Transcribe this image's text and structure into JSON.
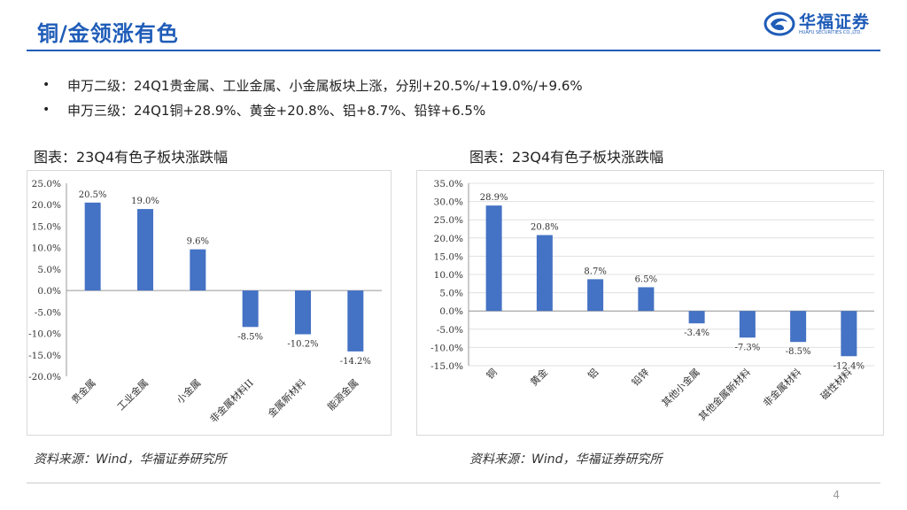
{
  "header": {
    "title": "铜/金领涨有色",
    "logo_name": "华福证券",
    "logo_sub": "HUAFU SECURITIES CO.,LTD."
  },
  "bullets": [
    "申万二级：24Q1贵金属、工业金属、小金属板块上涨，分别+20.5%/+19.0%/+9.6%",
    "申万三级：24Q1铜+28.9%、黄金+20.8%、铝+8.7%、铅锌+6.5%"
  ],
  "bullet_symbol": "•",
  "colors": {
    "accent": "#1F5CB8",
    "bar": "#4472C4"
  },
  "chart_data": [
    {
      "type": "bar",
      "title": "图表：23Q4有色子板块涨跌幅",
      "categories": [
        "贵金属",
        "工业金属",
        "小金属",
        "非金属材料II",
        "金属新材料",
        "能源金属"
      ],
      "values": [
        20.5,
        19.0,
        9.6,
        -8.5,
        -10.2,
        -14.2
      ],
      "value_labels": [
        "20.5%",
        "19.0%",
        "9.6%",
        "-8.5%",
        "-10.2%",
        "-14.2%"
      ],
      "yticks": [
        "25.0%",
        "20.0%",
        "15.0%",
        "10.0%",
        "5.0%",
        "0.0%",
        "-5.0%",
        "-10.0%",
        "-15.0%",
        "-20.0%"
      ],
      "ylim": [
        -20,
        25
      ],
      "grid": false,
      "source": "资料来源：Wind，华福证券研究所"
    },
    {
      "type": "bar",
      "title": "图表：23Q4有色子板块涨跌幅",
      "categories": [
        "铜",
        "黄金",
        "铝",
        "铅锌",
        "其他小金属",
        "其他金属新材料",
        "非金属材料",
        "磁性材料"
      ],
      "values": [
        28.9,
        20.8,
        8.7,
        6.5,
        -3.4,
        -7.3,
        -8.5,
        -12.4
      ],
      "value_labels": [
        "28.9%",
        "20.8%",
        "8.7%",
        "6.5%",
        "-3.4%",
        "-7.3%",
        "-8.5%",
        "-12.4%"
      ],
      "yticks": [
        "35.0%",
        "30.0%",
        "25.0%",
        "20.0%",
        "15.0%",
        "10.0%",
        "5.0%",
        "0.0%",
        "-5.0%",
        "-10.0%",
        "-15.0%"
      ],
      "ylim": [
        -15,
        35
      ],
      "grid": true,
      "source": "资料来源：Wind，华福证券研究所"
    }
  ],
  "page_number": "4"
}
